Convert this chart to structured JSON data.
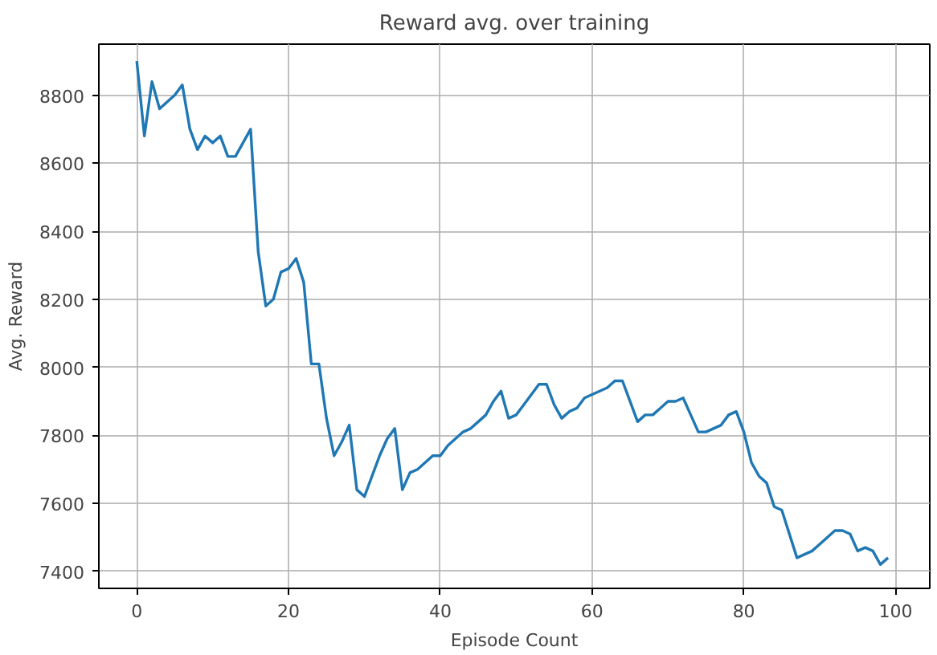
{
  "chart_data": {
    "type": "line",
    "title": "Reward avg. over training",
    "xlabel": "Episode Count",
    "ylabel": "Avg. Reward",
    "x": [
      0,
      1,
      2,
      3,
      4,
      5,
      6,
      7,
      8,
      9,
      10,
      11,
      12,
      13,
      14,
      15,
      16,
      17,
      18,
      19,
      20,
      21,
      22,
      23,
      24,
      25,
      26,
      27,
      28,
      29,
      30,
      31,
      32,
      33,
      34,
      35,
      36,
      37,
      38,
      39,
      40,
      41,
      42,
      43,
      44,
      45,
      46,
      47,
      48,
      49,
      50,
      51,
      52,
      53,
      54,
      55,
      56,
      57,
      58,
      59,
      60,
      61,
      62,
      63,
      64,
      65,
      66,
      67,
      68,
      69,
      70,
      71,
      72,
      73,
      74,
      75,
      76,
      77,
      78,
      79,
      80,
      81,
      82,
      83,
      84,
      85,
      86,
      87,
      88,
      89,
      90,
      91,
      92,
      93,
      94,
      95,
      96,
      97,
      98,
      99
    ],
    "series": [
      {
        "color": "#1f77b4",
        "values": [
          8900,
          8680,
          8840,
          8760,
          8780,
          8800,
          8830,
          8700,
          8640,
          8680,
          8660,
          8680,
          8620,
          8620,
          8660,
          8700,
          8340,
          8180,
          8200,
          8280,
          8290,
          8320,
          8250,
          8010,
          8010,
          7850,
          7740,
          7780,
          7830,
          7640,
          7620,
          7680,
          7740,
          7790,
          7820,
          7640,
          7690,
          7700,
          7720,
          7740,
          7740,
          7770,
          7790,
          7810,
          7820,
          7840,
          7860,
          7900,
          7930,
          7850,
          7860,
          7890,
          7920,
          7950,
          7950,
          7890,
          7850,
          7870,
          7880,
          7910,
          7920,
          7930,
          7940,
          7960,
          7960,
          7900,
          7840,
          7860,
          7860,
          7880,
          7900,
          7900,
          7910,
          7860,
          7810,
          7810,
          7820,
          7830,
          7860,
          7870,
          7810,
          7720,
          7680,
          7660,
          7590,
          7580,
          7510,
          7440,
          7450,
          7460,
          7480,
          7500,
          7520,
          7520,
          7510,
          7460,
          7470,
          7460,
          7420,
          7440
        ]
      }
    ],
    "xlim": [
      -5,
      104.5
    ],
    "ylim": [
      7350,
      8950
    ],
    "xticks": [
      0,
      20,
      40,
      60,
      80,
      100
    ],
    "yticks": [
      7400,
      7600,
      7800,
      8000,
      8200,
      8400,
      8600,
      8800
    ],
    "grid": true,
    "line_style": "solid"
  }
}
